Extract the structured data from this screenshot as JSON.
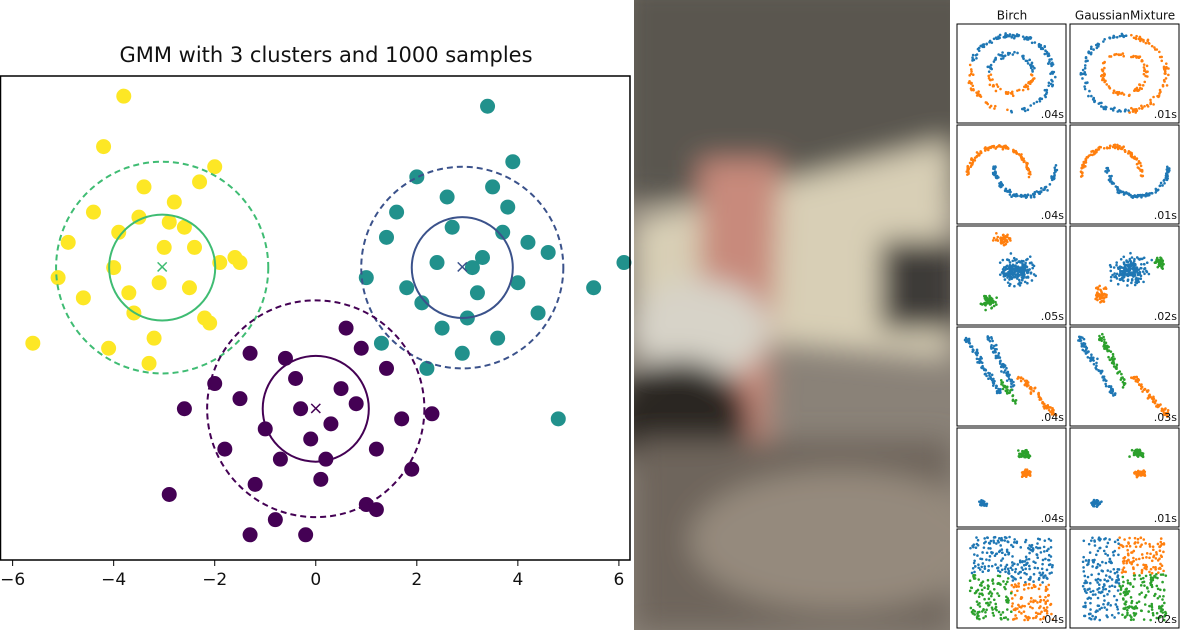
{
  "chart_data": {
    "type": "scatter",
    "title": "GMM with 3 clusters and 1000 samples",
    "xlim": [
      -6.24,
      6.18
    ],
    "ylim": [
      -5,
      4.6
    ],
    "xticks": [
      {
        "value": -6,
        "label": "−6"
      },
      {
        "value": -4,
        "label": "−4"
      },
      {
        "value": -2,
        "label": "−2"
      },
      0,
      2,
      4,
      6
    ],
    "series": [
      {
        "color": "#fde725",
        "x": [
          -3.8,
          -2.3,
          -4.2,
          -3.0,
          -2.5,
          -3.5,
          -1.9,
          -4.6,
          -3.2,
          -2.8,
          -4.0,
          -2.1,
          -3.6,
          -5.6,
          -3.9,
          -1.6,
          -2.6,
          -4.4,
          -3.1,
          -2.0,
          -4.9,
          -3.3,
          -2.4,
          -3.7,
          -1.5,
          -5.1,
          -2.9,
          -3.4,
          -2.2,
          -4.1
        ],
        "y": [
          4.2,
          2.5,
          3.2,
          1.2,
          0.4,
          1.8,
          0.9,
          0.2,
          -0.6,
          2.1,
          0.8,
          -0.3,
          -0.1,
          -0.7,
          1.5,
          1.0,
          1.6,
          1.9,
          0.5,
          2.8,
          1.3,
          -1.1,
          1.2,
          0.3,
          0.9,
          0.6,
          1.7,
          2.4,
          -0.2,
          -0.8
        ]
      },
      {
        "color": "#21918c",
        "x": [
          3.4,
          2.0,
          3.8,
          1.4,
          2.7,
          3.2,
          4.2,
          2.4,
          3.0,
          1.8,
          3.6,
          4.6,
          2.2,
          3.9,
          2.6,
          1.0,
          5.5,
          6.1,
          4.8,
          3.3,
          2.9,
          1.6,
          4.0,
          2.5,
          3.7,
          4.4,
          2.1,
          3.1,
          1.3,
          3.5
        ],
        "y": [
          4.0,
          2.6,
          2.0,
          1.4,
          1.6,
          0.3,
          1.3,
          0.9,
          -0.2,
          0.4,
          -0.6,
          1.1,
          -1.2,
          2.9,
          2.2,
          0.6,
          0.4,
          0.9,
          -2.2,
          1.0,
          -0.9,
          1.9,
          0.5,
          -0.4,
          1.5,
          -0.1,
          0.1,
          0.8,
          -0.7,
          2.4
        ]
      },
      {
        "color": "#440154",
        "x": [
          -0.3,
          0.5,
          -1.0,
          1.2,
          -0.6,
          0.2,
          -1.5,
          0.9,
          -0.1,
          1.7,
          -2.6,
          -2.9,
          -1.2,
          0.6,
          -0.8,
          1.4,
          2.3,
          -0.4,
          0.1,
          -1.8,
          1.0,
          -1.3,
          0.3,
          -0.7,
          0.8,
          -2.0,
          1.9,
          -0.2,
          1.2,
          -1.3
        ],
        "y": [
          -2.0,
          -1.6,
          -2.4,
          -2.8,
          -1.0,
          -3.0,
          -1.8,
          -0.8,
          -2.6,
          -2.2,
          -2.0,
          -3.7,
          -3.5,
          -0.4,
          -4.2,
          -1.2,
          -2.1,
          -1.4,
          -3.4,
          -2.8,
          -3.9,
          -0.9,
          -2.3,
          -3.0,
          -1.9,
          -1.5,
          -3.2,
          -4.5,
          -4.0,
          -4.5
        ]
      }
    ],
    "components": [
      {
        "mean": [
          -3.04,
          0.8
        ],
        "radii": [
          1.05,
          2.1
        ],
        "color": "#3fbc73"
      },
      {
        "mean": [
          2.9,
          0.8
        ],
        "radii": [
          1.0,
          2.0
        ],
        "color": "#3b528b"
      },
      {
        "mean": [
          0.0,
          -2.0
        ],
        "radii": [
          1.05,
          2.15
        ],
        "color": "#440154"
      }
    ]
  },
  "panels": {
    "columns": [
      "Birch",
      "GaussianMixture"
    ],
    "times": [
      [
        ".04s",
        ".01s"
      ],
      [
        ".04s",
        ".01s"
      ],
      [
        ".05s",
        ".02s"
      ],
      [
        ".04s",
        ".03s"
      ],
      [
        ".04s",
        ".01s"
      ],
      [
        ".04s",
        ".02s"
      ]
    ]
  }
}
